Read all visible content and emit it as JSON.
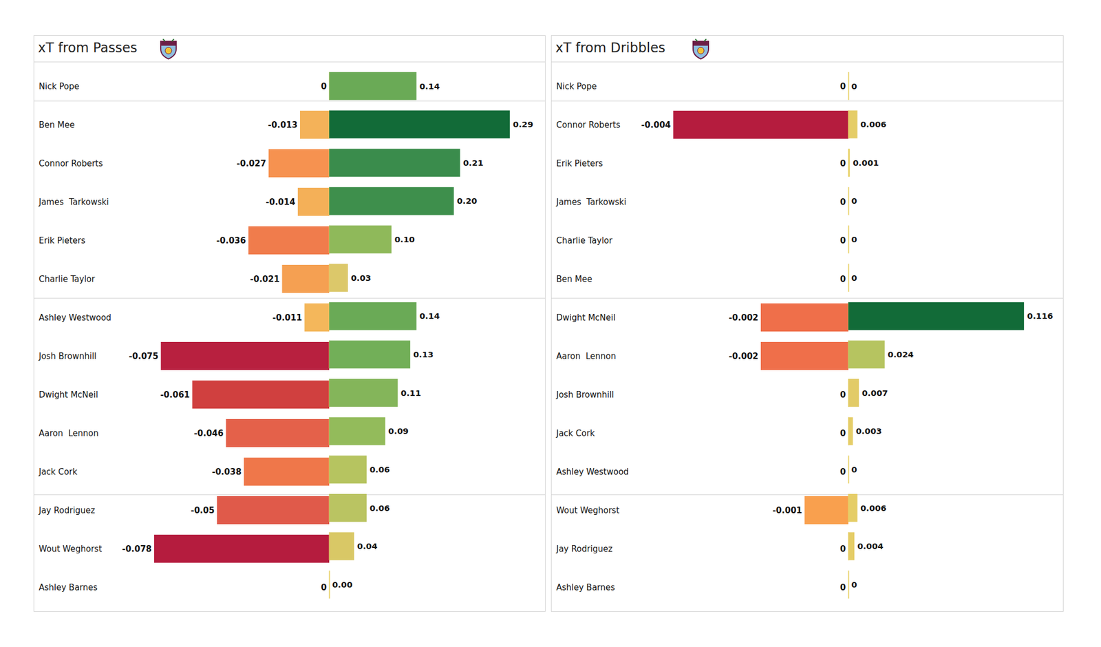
{
  "chart_data": [
    {
      "type": "bar",
      "title": "xT from Passes",
      "orientation": "horizontal",
      "data_labels": true,
      "tick_labels": false,
      "categories": [
        "Nick Pope",
        "Ben Mee",
        "Connor Roberts",
        "James  Tarkowski",
        "Erik Pieters",
        "Charlie Taylor",
        "Ashley Westwood",
        "Josh Brownhill",
        "Dwight McNeil",
        "Aaron  Lennon",
        "Jack Cork",
        "Jay Rodriguez",
        "Wout Weghorst",
        "Ashley Barnes"
      ],
      "series": [
        {
          "values": [
            0,
            -0.013,
            -0.027,
            -0.014,
            -0.036,
            -0.021,
            -0.011,
            -0.075,
            -0.061,
            -0.046,
            -0.038,
            -0.05,
            -0.078,
            0
          ],
          "value_labels": [
            "0",
            "-0.013",
            "-0.027",
            "-0.014",
            "-0.036",
            "-0.021",
            "-0.011",
            "-0.075",
            "-0.061",
            "-0.046",
            "-0.038",
            "-0.05",
            "-0.078",
            "0"
          ],
          "colors": [
            "#f4b55b",
            "#f4b259",
            "#f69250",
            "#f4b058",
            "#f07c4c",
            "#f5a052",
            "#f4b75b",
            "#b8203f",
            "#d0403f",
            "#e4614a",
            "#ef774a",
            "#e05a4a",
            "#b51c3e",
            "#f4b55b"
          ],
          "xlim": [
            -0.078,
            0
          ]
        },
        {
          "values": [
            0.14,
            0.29,
            0.21,
            0.2,
            0.1,
            0.03,
            0.14,
            0.13,
            0.11,
            0.09,
            0.06,
            0.06,
            0.04,
            0
          ],
          "value_labels": [
            "0.14",
            "0.29",
            "0.21",
            "0.20",
            "0.10",
            "0.03",
            "0.14",
            "0.13",
            "0.11",
            "0.09",
            "0.06",
            "0.06",
            "0.04",
            "0.00"
          ],
          "colors": [
            "#6aaa56",
            "#126b38",
            "#3a8c4c",
            "#3e8f4c",
            "#8fb95a",
            "#dcc86a",
            "#6aaa56",
            "#72af58",
            "#84b55a",
            "#93bb5b",
            "#b6c460",
            "#bac462",
            "#d9c866",
            "#e8d26a"
          ],
          "xlim": [
            0,
            0.29
          ]
        }
      ]
    },
    {
      "type": "bar",
      "title": "xT from Dribbles",
      "orientation": "horizontal",
      "data_labels": true,
      "tick_labels": false,
      "categories": [
        "Nick Pope",
        "Connor Roberts",
        "Erik Pieters",
        "James  Tarkowski",
        "Charlie Taylor",
        "Ben Mee",
        "Dwight McNeil",
        "Aaron  Lennon",
        "Josh Brownhill",
        "Jack Cork",
        "Ashley Westwood",
        "Wout Weghorst",
        "Jay Rodriguez",
        "Ashley Barnes"
      ],
      "series": [
        {
          "values": [
            0,
            -0.004,
            0,
            0,
            0,
            0,
            -0.002,
            -0.002,
            0,
            0,
            0,
            -0.001,
            0,
            0
          ],
          "value_labels": [
            "0",
            "-0.004",
            "0",
            "0",
            "0",
            "0",
            "-0.002",
            "-0.002",
            "0",
            "0",
            "0",
            "-0.001",
            "0",
            "0"
          ],
          "colors": [
            "#f4b55b",
            "#b51c3e",
            "#f4b55b",
            "#f4b55b",
            "#f4b55b",
            "#f4b55b",
            "#ef6f4a",
            "#ef6f4a",
            "#f4b55b",
            "#f4b55b",
            "#f4b55b",
            "#f9a04e",
            "#f4b55b",
            "#f4b55b"
          ],
          "xlim": [
            -0.004,
            0
          ]
        },
        {
          "values": [
            0,
            0.006,
            0.001,
            0,
            0,
            0,
            0.116,
            0.024,
            0.007,
            0.003,
            0,
            0.006,
            0.004,
            0
          ],
          "value_labels": [
            "0",
            "0.006",
            "0.001",
            "0",
            "0",
            "0",
            "0.116",
            "0.024",
            "0.007",
            "0.003",
            "0",
            "0.006",
            "0.004",
            "0"
          ],
          "colors": [
            "#e8d26a",
            "#e5cd67",
            "#e8d26a",
            "#e8d26a",
            "#e8d26a",
            "#e8d26a",
            "#126b38",
            "#b6c460",
            "#e2cb67",
            "#e5cd67",
            "#e8d26a",
            "#e5cd67",
            "#e5cd67",
            "#e8d26a"
          ],
          "xlim": [
            0,
            0.116
          ]
        }
      ]
    }
  ]
}
